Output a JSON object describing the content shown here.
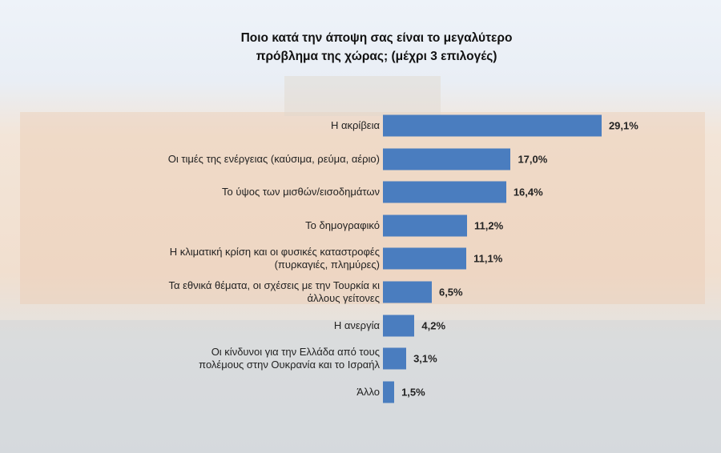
{
  "chart_data": {
    "type": "bar",
    "orientation": "horizontal",
    "title": "Ποιο κατά την άποψη σας είναι το μεγαλύτερο\nπρόβλημα της χώρας; (μέχρι 3 επιλογές)",
    "categories": [
      "Η ακρίβεια",
      "Οι τιμές της ενέργειας (καύσιμα, ρεύμα, αέριο)",
      "Το ύψος των μισθών/εισοδημάτων",
      "Το δημογραφικό",
      "Η κλιματική κρίση και οι φυσικές καταστροφές\n(πυρκαγιές, πλημύρες)",
      "Τα εθνικά θέματα, οι σχέσεις με την Τουρκία κι\nάλλους γείτονες",
      "Η ανεργία",
      "Οι κίνδυνοι για την Ελλάδα από τους\nπολέμους στην Ουκρανία και το Ισραήλ",
      "Άλλο"
    ],
    "values": [
      29.1,
      17.0,
      16.4,
      11.2,
      11.1,
      6.5,
      4.2,
      3.1,
      1.5
    ],
    "value_labels": [
      "29,1%",
      "17,0%",
      "16,4%",
      "11,2%",
      "11,1%",
      "6,5%",
      "4,2%",
      "3,1%",
      "1,5%"
    ],
    "color": "#4a7dbf"
  }
}
